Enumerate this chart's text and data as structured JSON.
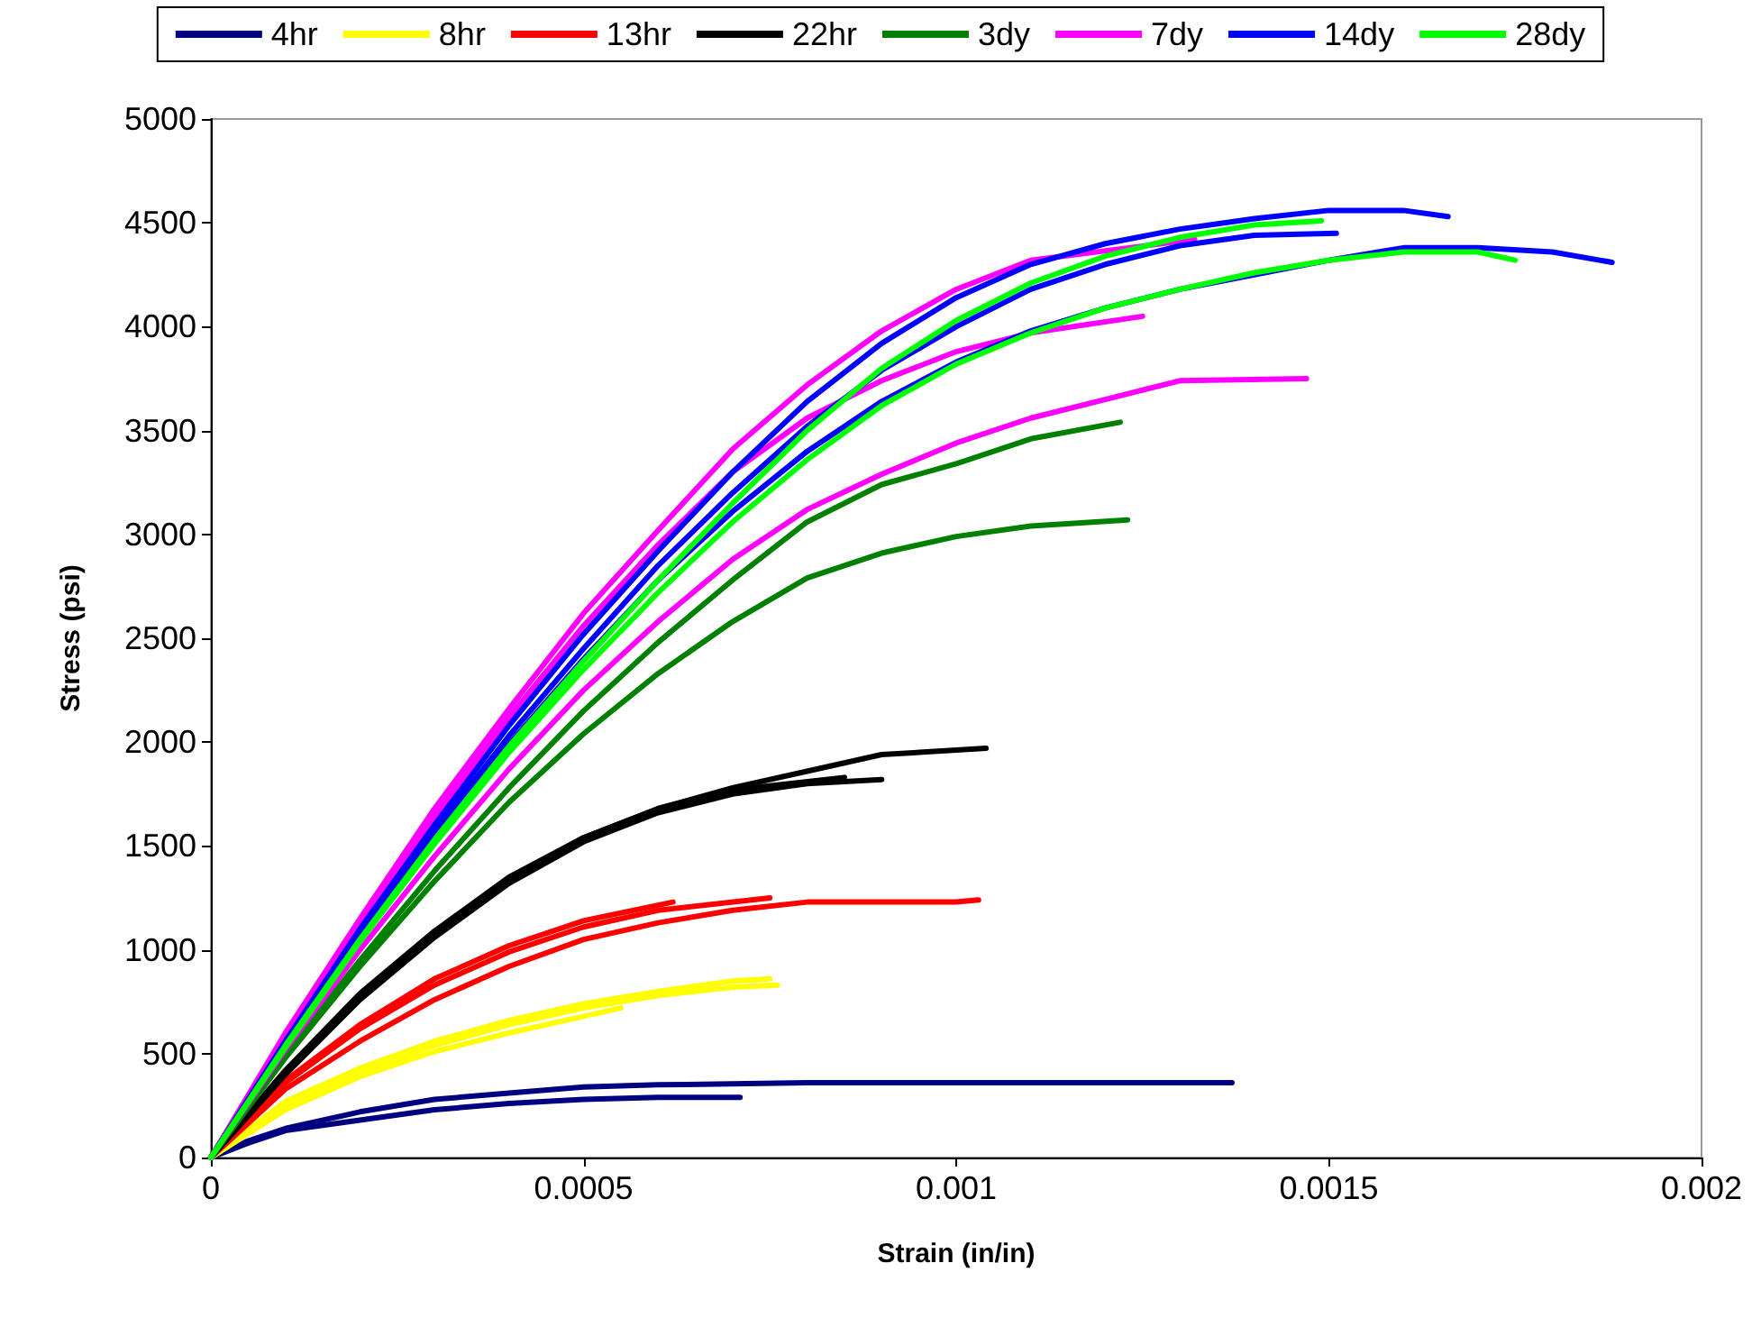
{
  "chart_data": {
    "type": "line",
    "xlabel": "Strain (in/in)",
    "ylabel": "Stress (psi)",
    "xlim": [
      0,
      0.002
    ],
    "xticks": [
      0,
      0.0005,
      0.001,
      0.0015,
      0.002
    ],
    "ylim": [
      0,
      5000
    ],
    "yticks": [
      0,
      500,
      1000,
      1500,
      2000,
      2500,
      3000,
      3500,
      4000,
      4500,
      5000
    ],
    "grid": false,
    "legend": "top",
    "marker": "none",
    "line_style": "solid",
    "series": [
      {
        "name": "4hr",
        "color": "#000080",
        "x": [
          0,
          5e-05,
          0.0001,
          0.0002,
          0.0003,
          0.0004,
          0.0005,
          0.0006,
          0.0008,
          0.001,
          0.00137
        ],
        "values": [
          0,
          80,
          140,
          220,
          280,
          310,
          340,
          350,
          360,
          360,
          360
        ]
      },
      {
        "color": "#000080",
        "x": [
          0,
          5e-05,
          0.0001,
          0.0002,
          0.0003,
          0.0004,
          0.0005,
          0.0006,
          0.00071
        ],
        "values": [
          0,
          70,
          130,
          180,
          230,
          260,
          280,
          290,
          290
        ]
      },
      {
        "name": "8hr",
        "color": "#ffff00",
        "x": [
          0,
          0.0001,
          0.0002,
          0.0003,
          0.0004,
          0.0005,
          0.0006,
          0.0007,
          0.00075
        ],
        "values": [
          0,
          270,
          430,
          560,
          660,
          740,
          800,
          850,
          860
        ]
      },
      {
        "color": "#ffff00",
        "x": [
          0,
          0.0001,
          0.0002,
          0.0003,
          0.0004,
          0.0005,
          0.0006,
          0.0007,
          0.00076
        ],
        "values": [
          0,
          250,
          410,
          540,
          640,
          720,
          780,
          820,
          830
        ]
      },
      {
        "color": "#ffff00",
        "x": [
          0,
          0.0001,
          0.0002,
          0.0003,
          0.0004,
          0.0005,
          0.00055
        ],
        "values": [
          0,
          230,
          390,
          510,
          600,
          680,
          720
        ]
      },
      {
        "name": "13hr",
        "color": "#ff0000",
        "x": [
          0,
          0.0001,
          0.0002,
          0.0003,
          0.0004,
          0.0005,
          0.0006,
          0.00075
        ],
        "values": [
          0,
          360,
          620,
          830,
          990,
          1110,
          1190,
          1250
        ]
      },
      {
        "color": "#ff0000",
        "x": [
          0,
          0.0001,
          0.0002,
          0.0003,
          0.0004,
          0.0005,
          0.0006,
          0.0007,
          0.0008,
          0.0009,
          0.001,
          0.00103
        ],
        "values": [
          0,
          330,
          560,
          760,
          920,
          1050,
          1130,
          1190,
          1230,
          1230,
          1230,
          1240
        ]
      },
      {
        "color": "#ff0000",
        "x": [
          0,
          0.0001,
          0.0002,
          0.0003,
          0.0004,
          0.0005,
          0.00062
        ],
        "values": [
          0,
          370,
          640,
          860,
          1020,
          1140,
          1230
        ]
      },
      {
        "name": "22hr",
        "color": "#000000",
        "x": [
          0,
          0.0001,
          0.0002,
          0.0003,
          0.0004,
          0.0005,
          0.0006,
          0.0007,
          0.0008,
          0.0009,
          0.00104
        ],
        "values": [
          0,
          420,
          790,
          1090,
          1350,
          1540,
          1680,
          1780,
          1860,
          1940,
          1970
        ]
      },
      {
        "color": "#000000",
        "x": [
          0,
          0.0001,
          0.0002,
          0.0003,
          0.0004,
          0.0005,
          0.0006,
          0.0007,
          0.0008,
          0.0009
        ],
        "values": [
          0,
          400,
          760,
          1060,
          1320,
          1520,
          1660,
          1750,
          1800,
          1820
        ]
      },
      {
        "color": "#000000",
        "x": [
          0,
          0.0001,
          0.0002,
          0.0003,
          0.0004,
          0.0005,
          0.0006,
          0.0007,
          0.00085
        ],
        "values": [
          0,
          410,
          780,
          1080,
          1340,
          1540,
          1680,
          1770,
          1830
        ]
      },
      {
        "name": "3dy",
        "color": "#008000",
        "x": [
          0,
          0.0001,
          0.0002,
          0.0003,
          0.0004,
          0.0005,
          0.0006,
          0.0007,
          0.0008,
          0.0009,
          0.001,
          0.0011,
          0.00122
        ],
        "values": [
          0,
          500,
          950,
          1380,
          1780,
          2150,
          2480,
          2780,
          3060,
          3240,
          3340,
          3460,
          3540
        ]
      },
      {
        "color": "#008000",
        "x": [
          0,
          0.0001,
          0.0002,
          0.0003,
          0.0004,
          0.0005,
          0.0006,
          0.0007,
          0.0008,
          0.0009,
          0.001,
          0.0011,
          0.00123
        ],
        "values": [
          0,
          480,
          920,
          1330,
          1710,
          2040,
          2330,
          2580,
          2790,
          2910,
          2990,
          3040,
          3070
        ]
      },
      {
        "name": "7dy",
        "color": "#ff00ff",
        "x": [
          0,
          0.0001,
          0.0002,
          0.0003,
          0.0004,
          0.0005,
          0.0006,
          0.0007,
          0.0008,
          0.0009,
          0.001,
          0.0011,
          0.00132
        ],
        "values": [
          0,
          600,
          1150,
          1680,
          2160,
          2620,
          3020,
          3410,
          3720,
          3980,
          4180,
          4320,
          4420
        ]
      },
      {
        "color": "#ff00ff",
        "x": [
          0,
          0.0001,
          0.0002,
          0.0003,
          0.0004,
          0.0005,
          0.0006,
          0.0007,
          0.0008,
          0.0009,
          0.001,
          0.0011,
          0.00125
        ],
        "values": [
          0,
          580,
          1120,
          1640,
          2120,
          2560,
          2950,
          3300,
          3560,
          3740,
          3880,
          3970,
          4050
        ]
      },
      {
        "color": "#ff00ff",
        "x": [
          0,
          0.0001,
          0.0002,
          0.0003,
          0.0004,
          0.0005,
          0.0006,
          0.0007,
          0.0008,
          0.0009,
          0.001,
          0.0011,
          0.0012,
          0.0013,
          0.00147
        ],
        "values": [
          0,
          520,
          1000,
          1450,
          1870,
          2250,
          2580,
          2880,
          3120,
          3290,
          3440,
          3560,
          3650,
          3740,
          3750
        ]
      },
      {
        "name": "14dy",
        "color": "#0000ff",
        "x": [
          0,
          0.0001,
          0.0002,
          0.0003,
          0.0004,
          0.0005,
          0.0006,
          0.0007,
          0.0008,
          0.0009,
          0.001,
          0.0011,
          0.0012,
          0.0013,
          0.0014,
          0.0015,
          0.0016,
          0.00166
        ],
        "values": [
          0,
          560,
          1100,
          1600,
          2080,
          2520,
          2920,
          3300,
          3640,
          3920,
          4140,
          4300,
          4400,
          4470,
          4520,
          4560,
          4560,
          4530
        ]
      },
      {
        "color": "#0000ff",
        "x": [
          0,
          0.0001,
          0.0002,
          0.0003,
          0.0004,
          0.0005,
          0.0006,
          0.0007,
          0.0008,
          0.0009,
          0.001,
          0.0011,
          0.0012,
          0.0013,
          0.0014,
          0.00151
        ],
        "values": [
          0,
          550,
          1080,
          1570,
          2030,
          2450,
          2850,
          3200,
          3520,
          3790,
          4000,
          4180,
          4300,
          4390,
          4440,
          4450
        ]
      },
      {
        "color": "#0000ff",
        "x": [
          0,
          0.0001,
          0.0002,
          0.0003,
          0.0004,
          0.0005,
          0.0006,
          0.0007,
          0.0008,
          0.0009,
          0.001,
          0.0011,
          0.0012,
          0.0013,
          0.0014,
          0.0015,
          0.0016,
          0.0017,
          0.0018,
          0.00188
        ],
        "values": [
          0,
          540,
          1060,
          1540,
          1990,
          2400,
          2780,
          3110,
          3400,
          3640,
          3830,
          3980,
          4090,
          4180,
          4250,
          4320,
          4380,
          4380,
          4360,
          4310
        ]
      },
      {
        "name": "28dy",
        "color": "#00ff00",
        "x": [
          0,
          0.0001,
          0.0002,
          0.0003,
          0.0004,
          0.0005,
          0.0006,
          0.0007,
          0.0008,
          0.0009,
          0.001,
          0.0011,
          0.0012,
          0.0013,
          0.0014,
          0.00149
        ],
        "values": [
          0,
          540,
          1050,
          1530,
          1980,
          2390,
          2780,
          3150,
          3500,
          3800,
          4030,
          4210,
          4340,
          4430,
          4490,
          4510
        ]
      },
      {
        "color": "#00ff00",
        "x": [
          0,
          0.0001,
          0.0002,
          0.0003,
          0.0004,
          0.0005,
          0.0006,
          0.0007,
          0.0008,
          0.0009,
          0.001,
          0.0011,
          0.0012,
          0.0013,
          0.0014,
          0.0015,
          0.0016,
          0.0017,
          0.00175
        ],
        "values": [
          0,
          530,
          1040,
          1510,
          1950,
          2350,
          2720,
          3060,
          3360,
          3620,
          3820,
          3970,
          4090,
          4180,
          4260,
          4320,
          4360,
          4360,
          4320
        ]
      }
    ]
  }
}
